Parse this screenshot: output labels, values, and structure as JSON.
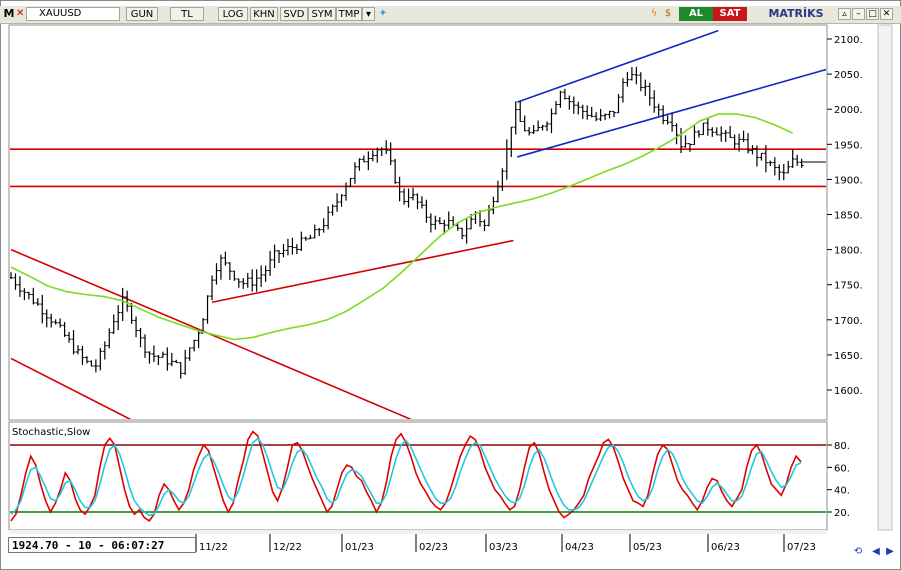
{
  "toolbar": {
    "logo": "M",
    "symbol": "XAUUSD",
    "buttons": [
      "GUN",
      "TL",
      "LOG",
      "KHN",
      "SVD",
      "SYM",
      "TMP"
    ],
    "buy_label": "AL",
    "sell_label": "SAT",
    "brand": "MATRİKS"
  },
  "status": {
    "readout": "1924.70 - 10 - 06:07:27"
  },
  "colors": {
    "price": "#000000",
    "ma": "#7ddc1f",
    "red_line": "#d40000",
    "blue_line": "#1026c8",
    "stoch_k": "#e00000",
    "stoch_d": "#20c8e0",
    "upper_band": "#8b0000",
    "lower_band": "#008000"
  },
  "chart_data": [
    {
      "type": "bar",
      "subtype": "ohlc",
      "symbol": "XAUUSD",
      "x_tick_labels": [
        "11/22",
        "12/22",
        "01/23",
        "02/23",
        "03/23",
        "04/23",
        "05/23",
        "06/23",
        "07/23"
      ],
      "y_ticks": [
        1600,
        1650,
        1700,
        1750,
        1800,
        1850,
        1900,
        1950,
        2000,
        2050,
        2100
      ],
      "ylim": [
        1570,
        2125
      ],
      "grid": false,
      "series": [
        {
          "name": "",
          "kind": "moving_average",
          "values": [
            [
              0,
              1775
            ],
            [
              10,
              1762
            ],
            [
              20,
              1748
            ],
            [
              30,
              1740
            ],
            [
              40,
              1736
            ],
            [
              50,
              1733
            ],
            [
              60,
              1727
            ],
            [
              70,
              1715
            ],
            [
              80,
              1703
            ],
            [
              90,
              1694
            ],
            [
              100,
              1685
            ],
            [
              110,
              1678
            ],
            [
              120,
              1672
            ],
            [
              130,
              1675
            ],
            [
              140,
              1682
            ],
            [
              150,
              1688
            ],
            [
              160,
              1693
            ],
            [
              170,
              1700
            ],
            [
              180,
              1712
            ],
            [
              190,
              1728
            ],
            [
              200,
              1745
            ],
            [
              210,
              1768
            ],
            [
              220,
              1793
            ],
            [
              230,
              1818
            ],
            [
              240,
              1838
            ],
            [
              250,
              1852
            ],
            [
              260,
              1860
            ],
            [
              270,
              1866
            ],
            [
              280,
              1872
            ],
            [
              290,
              1880
            ],
            [
              300,
              1890
            ],
            [
              310,
              1901
            ],
            [
              320,
              1912
            ],
            [
              330,
              1922
            ],
            [
              340,
              1934
            ],
            [
              350,
              1948
            ],
            [
              360,
              1964
            ],
            [
              370,
              1983
            ],
            [
              380,
              1993
            ],
            [
              390,
              1993
            ],
            [
              400,
              1988
            ],
            [
              410,
              1978
            ],
            [
              420,
              1966
            ]
          ]
        }
      ],
      "price_path": [
        [
          0,
          1760
        ],
        [
          8,
          1738
        ],
        [
          15,
          1720
        ],
        [
          22,
          1700
        ],
        [
          28,
          1680
        ],
        [
          35,
          1655
        ],
        [
          40,
          1640
        ],
        [
          45,
          1632
        ],
        [
          50,
          1660
        ],
        [
          55,
          1700
        ],
        [
          60,
          1726
        ],
        [
          65,
          1705
        ],
        [
          70,
          1668
        ],
        [
          75,
          1650
        ],
        [
          82,
          1645
        ],
        [
          88,
          1636
        ],
        [
          92,
          1628
        ],
        [
          96,
          1660
        ],
        [
          100,
          1678
        ],
        [
          104,
          1712
        ],
        [
          108,
          1762
        ],
        [
          112,
          1787
        ],
        [
          118,
          1770
        ],
        [
          124,
          1752
        ],
        [
          130,
          1755
        ],
        [
          136,
          1768
        ],
        [
          142,
          1793
        ],
        [
          148,
          1800
        ],
        [
          155,
          1808
        ],
        [
          162,
          1818
        ],
        [
          168,
          1838
        ],
        [
          174,
          1862
        ],
        [
          178,
          1885
        ],
        [
          182,
          1902
        ],
        [
          186,
          1920
        ],
        [
          190,
          1930
        ],
        [
          194,
          1940
        ],
        [
          198,
          1946
        ],
        [
          202,
          1935
        ],
        [
          206,
          1905
        ],
        [
          210,
          1868
        ],
        [
          214,
          1880
        ],
        [
          218,
          1868
        ],
        [
          222,
          1852
        ],
        [
          226,
          1840
        ],
        [
          230,
          1835
        ],
        [
          234,
          1842
        ],
        [
          238,
          1828
        ],
        [
          242,
          1822
        ],
        [
          246,
          1836
        ],
        [
          250,
          1855
        ],
        [
          254,
          1830
        ],
        [
          258,
          1865
        ],
        [
          262,
          1900
        ],
        [
          266,
          1935
        ],
        [
          270,
          1998
        ],
        [
          275,
          1975
        ],
        [
          280,
          1960
        ],
        [
          285,
          1978
        ],
        [
          290,
          1990
        ],
        [
          295,
          2030
        ],
        [
          300,
          2012
        ],
        [
          305,
          2000
        ],
        [
          310,
          1994
        ],
        [
          315,
          1985
        ],
        [
          320,
          1990
        ],
        [
          325,
          2000
        ],
        [
          330,
          2050
        ],
        [
          335,
          2045
        ],
        [
          340,
          2030
        ],
        [
          345,
          2010
        ],
        [
          350,
          1990
        ],
        [
          355,
          1985
        ],
        [
          360,
          1950
        ],
        [
          365,
          1955
        ],
        [
          370,
          1972
        ],
        [
          375,
          1975
        ],
        [
          380,
          1968
        ],
        [
          385,
          1958
        ],
        [
          390,
          1955
        ],
        [
          395,
          1948
        ],
        [
          400,
          1936
        ],
        [
          405,
          1928
        ],
        [
          410,
          1915
        ],
        [
          415,
          1905
        ],
        [
          420,
          1925
        ],
        [
          425,
          1924.7
        ]
      ],
      "price_mapping": "x_index_spans_11px_to_802px",
      "horizontal_lines": [
        1943,
        1890
      ],
      "trendlines": [
        {
          "color": "red",
          "from": [
            0,
            1800
          ],
          "to": [
            215,
            1558
          ]
        },
        {
          "color": "red",
          "from": [
            0,
            1645
          ],
          "to": [
            65,
            1557
          ]
        },
        {
          "color": "red",
          "from": [
            108,
            1725
          ],
          "to": [
            270,
            1813
          ]
        },
        {
          "color": "blue",
          "from": [
            272,
            2010
          ],
          "to": [
            380,
            2112
          ]
        },
        {
          "color": "blue",
          "from": [
            272,
            1932
          ],
          "to": [
            440,
            2058
          ]
        }
      ]
    },
    {
      "type": "line",
      "title": "Stochastic,Slow",
      "y_ticks": [
        20,
        40,
        60,
        80
      ],
      "ylim": [
        5,
        98
      ],
      "bands": [
        80,
        20
      ],
      "series": [
        {
          "name": "",
          "values": [
            12,
            18,
            35,
            55,
            70,
            62,
            45,
            30,
            20,
            28,
            40,
            55,
            48,
            32,
            22,
            18,
            25,
            35,
            60,
            80,
            86,
            80,
            60,
            40,
            25,
            18,
            22,
            15,
            12,
            18,
            35,
            45,
            40,
            30,
            22,
            28,
            40,
            58,
            70,
            80,
            75,
            60,
            45,
            30,
            20,
            28,
            48,
            65,
            85,
            92,
            88,
            72,
            55,
            38,
            30,
            42,
            60,
            80,
            82,
            75,
            62,
            50,
            40,
            30,
            20,
            25,
            40,
            55,
            62,
            60,
            52,
            48,
            38,
            30,
            20,
            28,
            46,
            70,
            85,
            90,
            82,
            70,
            55,
            45,
            38,
            30,
            25,
            22,
            28,
            40,
            55,
            70,
            80,
            88,
            85,
            75,
            60,
            50,
            40,
            35,
            28,
            22,
            25,
            40,
            60,
            78,
            82,
            72,
            55,
            40,
            30,
            20,
            15,
            18,
            22,
            28,
            35,
            50,
            60,
            70,
            82,
            85,
            78,
            65,
            50,
            40,
            30,
            28,
            25,
            35,
            55,
            72,
            80,
            76,
            62,
            48,
            40,
            35,
            28,
            22,
            30,
            42,
            50,
            48,
            38,
            30,
            25,
            32,
            40,
            60,
            75,
            80,
            72,
            58,
            45,
            40,
            35,
            45,
            60,
            70,
            65
          ]
        },
        {
          "name": "",
          "values": [
            18,
            22,
            30,
            45,
            58,
            60,
            52,
            42,
            32,
            30,
            36,
            46,
            48,
            40,
            30,
            24,
            24,
            30,
            45,
            62,
            76,
            80,
            72,
            58,
            42,
            30,
            24,
            20,
            17,
            18,
            26,
            36,
            40,
            36,
            30,
            28,
            34,
            46,
            58,
            68,
            72,
            66,
            56,
            44,
            34,
            30,
            38,
            52,
            68,
            82,
            86,
            80,
            68,
            54,
            42,
            40,
            50,
            64,
            74,
            76,
            70,
            60,
            50,
            42,
            32,
            28,
            32,
            44,
            54,
            58,
            56,
            52,
            44,
            36,
            28,
            28,
            36,
            52,
            68,
            80,
            84,
            78,
            68,
            58,
            48,
            40,
            32,
            28,
            28,
            32,
            42,
            56,
            68,
            78,
            82,
            80,
            70,
            60,
            50,
            42,
            35,
            30,
            28,
            32,
            44,
            60,
            72,
            76,
            68,
            56,
            44,
            34,
            26,
            22,
            22,
            24,
            30,
            40,
            50,
            60,
            70,
            78,
            80,
            74,
            64,
            52,
            42,
            34,
            30,
            32,
            42,
            58,
            70,
            76,
            72,
            62,
            50,
            42,
            36,
            30,
            28,
            34,
            42,
            46,
            42,
            36,
            30,
            30,
            34,
            46,
            60,
            72,
            74,
            66,
            56,
            48,
            42,
            44,
            52,
            62,
            64
          ]
        }
      ]
    }
  ]
}
